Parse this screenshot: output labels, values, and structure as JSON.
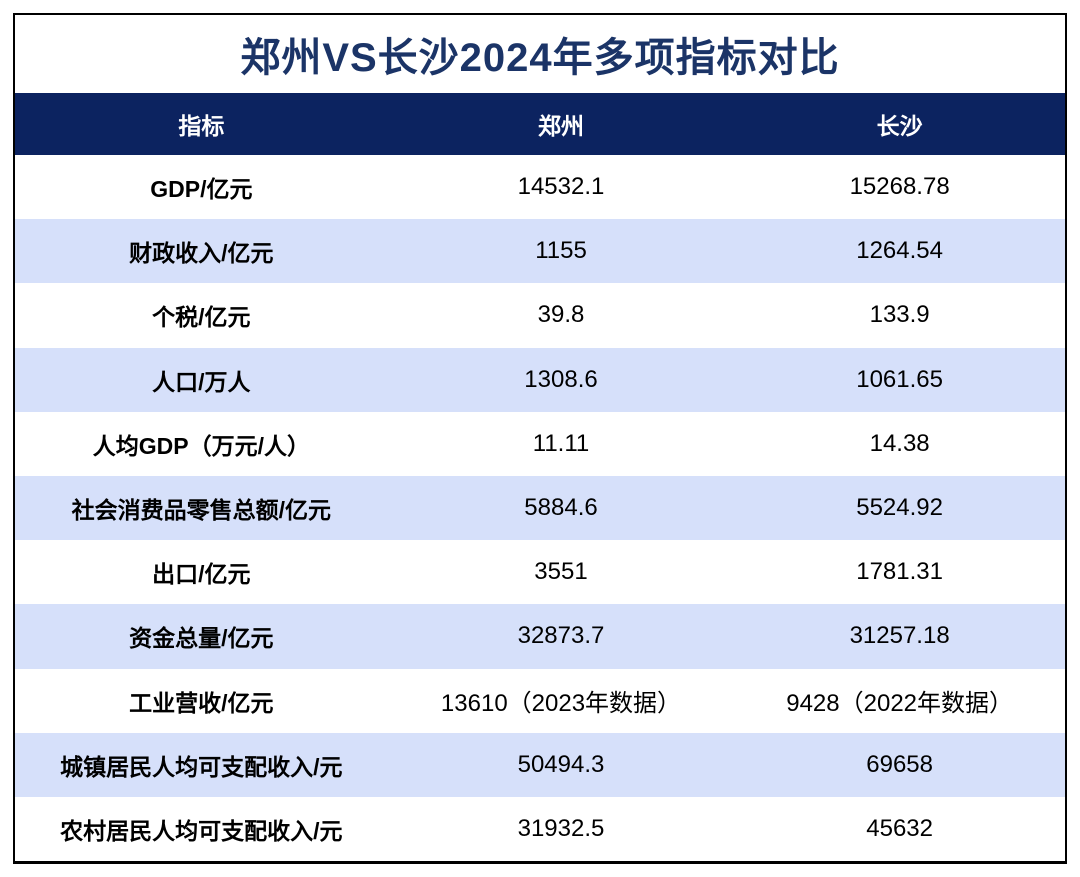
{
  "title": "郑州VS长沙2024年多项指标对比",
  "colors": {
    "header_bg": "#0c2360",
    "stripe_bg": "#d6e0fa",
    "title_color": "#1b3467",
    "border": "#000000"
  },
  "table": {
    "headers": [
      "指标",
      "郑州",
      "长沙"
    ],
    "rows": [
      {
        "label": "GDP/亿元",
        "zhengzhou": "14532.1",
        "changsha": "15268.78"
      },
      {
        "label": "财政收入/亿元",
        "zhengzhou": "1155",
        "changsha": "1264.54"
      },
      {
        "label": "个税/亿元",
        "zhengzhou": "39.8",
        "changsha": "133.9"
      },
      {
        "label": "人口/万人",
        "zhengzhou": "1308.6",
        "changsha": "1061.65"
      },
      {
        "label": "人均GDP（万元/人）",
        "zhengzhou": "11.11",
        "changsha": "14.38"
      },
      {
        "label": "社会消费品零售总额/亿元",
        "zhengzhou": "5884.6",
        "changsha": "5524.92"
      },
      {
        "label": "出口/亿元",
        "zhengzhou": "3551",
        "changsha": "1781.31"
      },
      {
        "label": "资金总量/亿元",
        "zhengzhou": "32873.7",
        "changsha": "31257.18"
      },
      {
        "label": "工业营收/亿元",
        "zhengzhou": "13610（2023年数据）",
        "changsha": "9428（2022年数据）"
      },
      {
        "label": "城镇居民人均可支配收入/元",
        "zhengzhou": "50494.3",
        "changsha": "69658"
      },
      {
        "label": "农村居民人均可支配收入/元",
        "zhengzhou": "31932.5",
        "changsha": "45632"
      }
    ]
  },
  "chart_data": {
    "type": "table",
    "title": "郑州VS长沙2024年多项指标对比",
    "columns": [
      "指标",
      "郑州",
      "长沙"
    ],
    "rows": [
      [
        "GDP/亿元",
        "14532.1",
        "15268.78"
      ],
      [
        "财政收入/亿元",
        "1155",
        "1264.54"
      ],
      [
        "个税/亿元",
        "39.8",
        "133.9"
      ],
      [
        "人口/万人",
        "1308.6",
        "1061.65"
      ],
      [
        "人均GDP（万元/人）",
        "11.11",
        "14.38"
      ],
      [
        "社会消费品零售总额/亿元",
        "5884.6",
        "5524.92"
      ],
      [
        "出口/亿元",
        "3551",
        "1781.31"
      ],
      [
        "资金总量/亿元",
        "32873.7",
        "31257.18"
      ],
      [
        "工业营收/亿元",
        "13610（2023年数据）",
        "9428（2022年数据）"
      ],
      [
        "城镇居民人均可支配收入/元",
        "50494.3",
        "69658"
      ],
      [
        "农村居民人均可支配收入/元",
        "31932.5",
        "45632"
      ]
    ]
  }
}
